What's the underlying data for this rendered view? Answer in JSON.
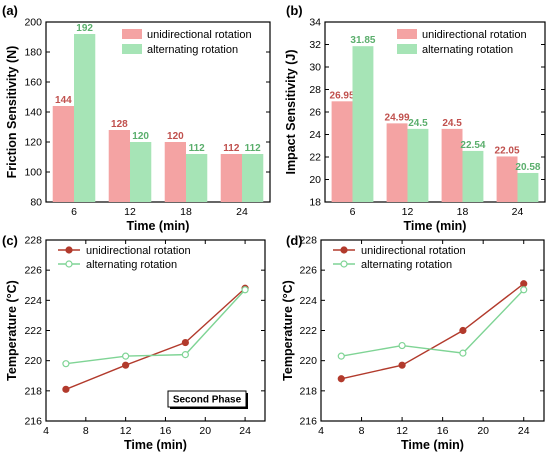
{
  "colors": {
    "bar_unidirectional": "#f4a3a3",
    "bar_alternating": "#a6e4b6",
    "label_unidirectional": "#c0504d",
    "label_alternating": "#5aae6c",
    "line_unidirectional": "#b23a2c",
    "line_alternating": "#7fd495"
  },
  "chart_data": [
    {
      "panel": "(a)",
      "type": "bar",
      "categories": [
        "6",
        "12",
        "18",
        "24"
      ],
      "series": [
        {
          "name": "unidirectional rotation",
          "values": [
            144,
            128,
            120,
            112
          ],
          "labels": [
            "144",
            "128",
            "120",
            "112"
          ]
        },
        {
          "name": "alternating rotation",
          "values": [
            192,
            120,
            112,
            112
          ],
          "labels": [
            "192",
            "120",
            "112",
            "112"
          ]
        }
      ],
      "xlabel": "Time (min)",
      "ylabel": "Friction Sensitivity (N)",
      "ylim": [
        80,
        200
      ],
      "yticks": [
        80,
        100,
        120,
        140,
        160,
        180,
        200
      ],
      "legend": "top-right",
      "grid": false
    },
    {
      "panel": "(b)",
      "type": "bar",
      "categories": [
        "6",
        "12",
        "18",
        "24"
      ],
      "series": [
        {
          "name": "unidirectional rotation",
          "values": [
            26.95,
            24.99,
            24.5,
            22.05
          ],
          "labels": [
            "26.95",
            "24.99",
            "24.5",
            "22.05"
          ]
        },
        {
          "name": "alternating rotation",
          "values": [
            31.85,
            24.5,
            22.54,
            20.58
          ],
          "labels": [
            "31.85",
            "24.5",
            "22.54",
            "20.58"
          ]
        }
      ],
      "xlabel": "Time (min)",
      "ylabel": "Impact Sensitivity (J)",
      "ylim": [
        18,
        34
      ],
      "yticks": [
        18,
        20,
        22,
        24,
        26,
        28,
        30,
        32,
        34
      ],
      "legend": "top-right",
      "grid": false
    },
    {
      "panel": "(c)",
      "type": "line",
      "series": [
        {
          "name": "unidirectional rotation",
          "x": [
            6,
            12,
            18,
            24
          ],
          "y": [
            218.1,
            219.7,
            221.2,
            224.8
          ]
        },
        {
          "name": "alternating rotation",
          "x": [
            6,
            12,
            18,
            24
          ],
          "y": [
            219.8,
            220.3,
            220.4,
            224.7
          ]
        }
      ],
      "xlabel": "Time (min)",
      "ylabel": "Temperature (°C)",
      "xlim": [
        4,
        26
      ],
      "xticks": [
        4,
        8,
        12,
        16,
        20,
        24
      ],
      "ylim": [
        216,
        228
      ],
      "yticks": [
        216,
        218,
        220,
        222,
        224,
        226,
        228
      ],
      "annotation": "Second Phase",
      "legend": "top-left",
      "grid": false
    },
    {
      "panel": "(d)",
      "type": "line",
      "series": [
        {
          "name": "unidirectional rotation",
          "x": [
            6,
            12,
            18,
            24
          ],
          "y": [
            218.8,
            219.7,
            222.0,
            225.1
          ]
        },
        {
          "name": "alternating rotation",
          "x": [
            6,
            12,
            18,
            24
          ],
          "y": [
            220.3,
            221.0,
            220.5,
            224.7
          ]
        }
      ],
      "xlabel": "Time (min)",
      "ylabel": "Temperature (°C)",
      "xlim": [
        4,
        26
      ],
      "xticks": [
        4,
        8,
        12,
        16,
        20,
        24
      ],
      "ylim": [
        216,
        228
      ],
      "yticks": [
        216,
        218,
        220,
        222,
        224,
        226,
        228
      ],
      "legend": "top-left",
      "grid": false
    }
  ]
}
